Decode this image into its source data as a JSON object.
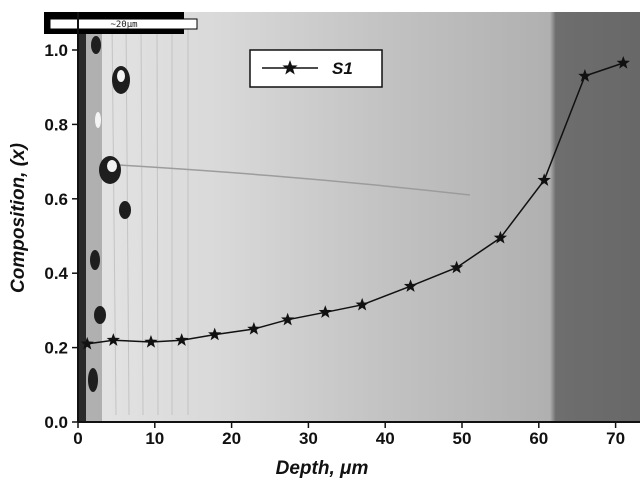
{
  "chart_data": {
    "type": "line",
    "xlabel": "Depth, ",
    "xlabel_unit": "μm",
    "ylabel": "Composition, (x)",
    "xlim": [
      0,
      77
    ],
    "ylim": [
      0.0,
      1.05
    ],
    "xticks": [
      "0",
      "10",
      "20",
      "30",
      "40",
      "50",
      "60",
      "70"
    ],
    "yticks": [
      "0.0",
      "0.2",
      "0.4",
      "0.6",
      "0.8",
      "1.0"
    ],
    "grid": false,
    "legend_position": "top-center",
    "series": [
      {
        "name": "S1",
        "marker": "star",
        "color": "#111111",
        "x": [
          1.2,
          4.6,
          9.5,
          13.5,
          17.8,
          22.9,
          27.3,
          32.2,
          37.0,
          43.3,
          49.3,
          55.0,
          60.7,
          66.0,
          71.0
        ],
        "y": [
          0.21,
          0.22,
          0.215,
          0.22,
          0.235,
          0.25,
          0.275,
          0.295,
          0.315,
          0.365,
          0.415,
          0.495,
          0.65,
          0.93,
          0.965
        ]
      }
    ],
    "background_image": "SEM cross-section micrograph",
    "scale_bar_label": "~20μm"
  }
}
